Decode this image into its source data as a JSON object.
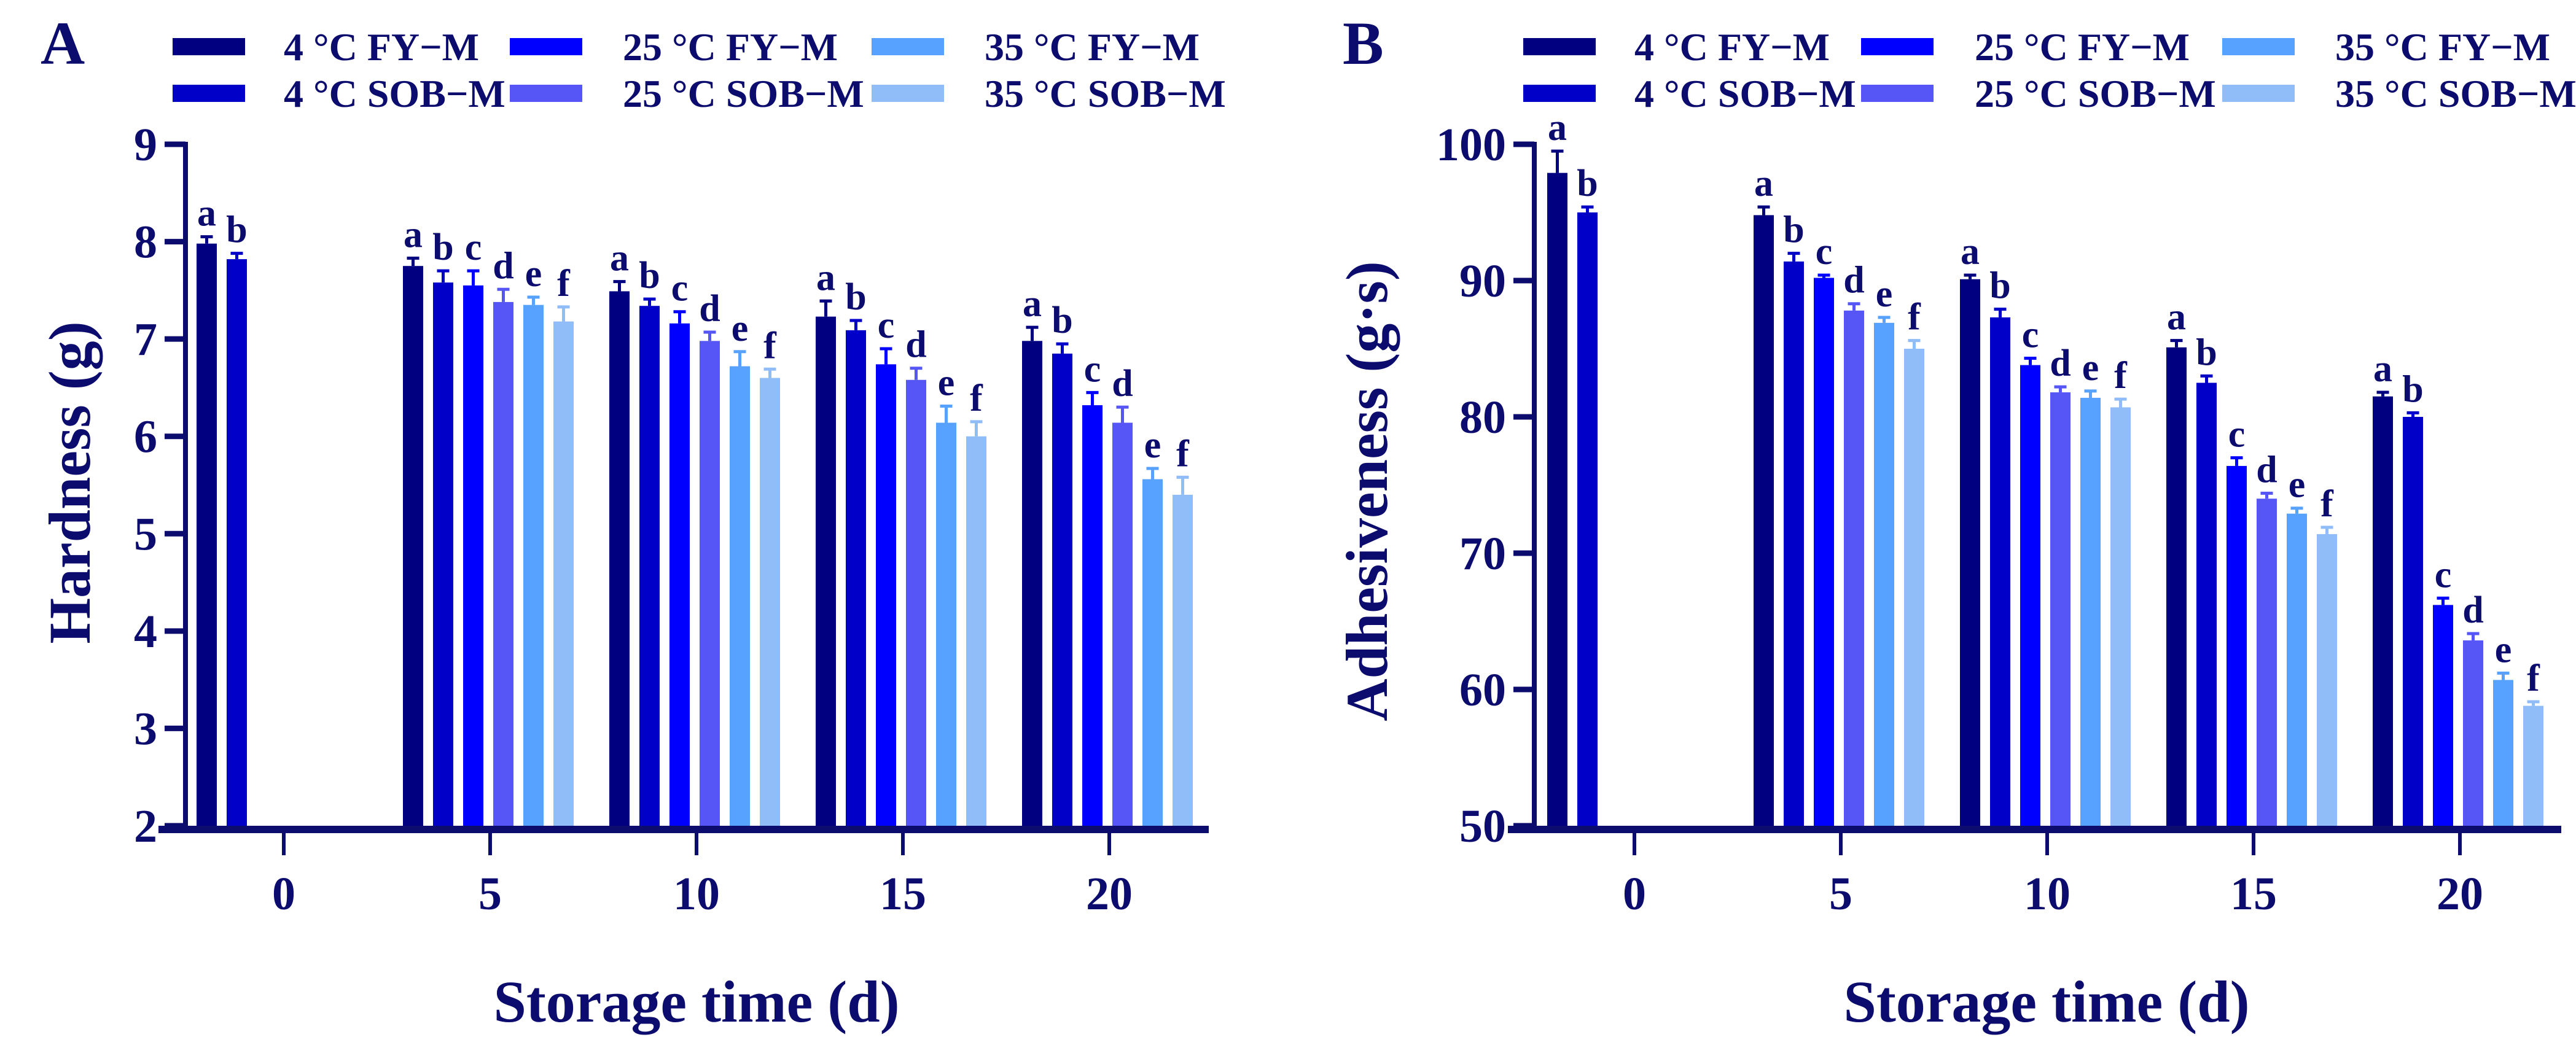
{
  "colors": {
    "axis": "#0c0c6e",
    "series": [
      "#000080",
      "#0000c8",
      "#0000ff",
      "#5656f6",
      "#56a2fe",
      "#90bdf8"
    ]
  },
  "chart_data": [
    {
      "type": "bar",
      "panel_label": "A",
      "xlabel": "Storage time (d)",
      "ylabel": "Hardness (g)",
      "categories": [
        "0",
        "5",
        "10",
        "15",
        "20"
      ],
      "ylim": [
        2,
        9
      ],
      "yticks": [
        "2",
        "3",
        "4",
        "5",
        "6",
        "7",
        "8",
        "9"
      ],
      "legend_position": "top",
      "series": [
        {
          "name": "4 °C FY−M",
          "values": [
            7.98,
            7.75,
            7.49,
            7.23,
            6.98
          ],
          "errors": [
            0.07,
            0.08,
            0.1,
            0.16,
            0.14
          ],
          "letters": [
            "a",
            "a",
            "a",
            "a",
            "a"
          ]
        },
        {
          "name": "4 °C SOB−M",
          "values": [
            7.82,
            7.58,
            7.34,
            7.09,
            6.85
          ],
          "errors": [
            0.06,
            0.12,
            0.07,
            0.1,
            0.1
          ],
          "letters": [
            "b",
            "b",
            "b",
            "b",
            "b"
          ]
        },
        {
          "name": "25 °C FY−M",
          "values": [
            null,
            7.55,
            7.16,
            6.74,
            6.32
          ],
          "errors": [
            null,
            0.15,
            0.12,
            0.16,
            0.13
          ],
          "letters": [
            null,
            "c",
            "c",
            "c",
            "c"
          ]
        },
        {
          "name": "25 °C SOB−M",
          "values": [
            null,
            7.38,
            6.98,
            6.58,
            6.14
          ],
          "errors": [
            null,
            0.13,
            0.09,
            0.12,
            0.16
          ],
          "letters": [
            null,
            "d",
            "d",
            "d",
            "d"
          ]
        },
        {
          "name": "35 °C FY−M",
          "values": [
            null,
            7.35,
            6.72,
            6.14,
            5.56
          ],
          "errors": [
            null,
            0.08,
            0.15,
            0.17,
            0.11
          ],
          "letters": [
            null,
            "e",
            "e",
            "e",
            "e"
          ]
        },
        {
          "name": "35 °C SOB−M",
          "values": [
            null,
            7.18,
            6.6,
            6.0,
            5.4
          ],
          "errors": [
            null,
            0.15,
            0.09,
            0.15,
            0.18
          ],
          "letters": [
            null,
            "f",
            "f",
            "f",
            "f"
          ]
        }
      ]
    },
    {
      "type": "bar",
      "panel_label": "B",
      "xlabel": "Storage time (d)",
      "ylabel": "Adhesiveness (g·s)",
      "categories": [
        "0",
        "5",
        "10",
        "15",
        "20"
      ],
      "ylim": [
        50,
        100
      ],
      "yticks": [
        "50",
        "60",
        "70",
        "80",
        "90",
        "100"
      ],
      "legend_position": "top",
      "series": [
        {
          "name": "4 °C FY−M",
          "values": [
            97.9,
            94.8,
            90.1,
            85.1,
            81.5
          ],
          "errors": [
            1.6,
            0.6,
            0.3,
            0.5,
            0.3
          ],
          "letters": [
            "a",
            "a",
            "a",
            "a",
            "a"
          ]
        },
        {
          "name": "4 °C SOB−M",
          "values": [
            95.0,
            91.4,
            87.3,
            82.5,
            80.0
          ],
          "errors": [
            0.4,
            0.6,
            0.6,
            0.5,
            0.3
          ],
          "letters": [
            "b",
            "b",
            "b",
            "b",
            "b"
          ]
        },
        {
          "name": "25 °C FY−M",
          "values": [
            null,
            90.2,
            83.8,
            76.4,
            66.2
          ],
          "errors": [
            null,
            0.2,
            0.5,
            0.6,
            0.5
          ],
          "letters": [
            null,
            "c",
            "c",
            "c",
            "c"
          ]
        },
        {
          "name": "25 °C SOB−M",
          "values": [
            null,
            87.8,
            81.8,
            74.0,
            63.6
          ],
          "errors": [
            null,
            0.5,
            0.4,
            0.4,
            0.5
          ],
          "letters": [
            null,
            "d",
            "d",
            "d",
            "d"
          ]
        },
        {
          "name": "35 °C FY−M",
          "values": [
            null,
            86.9,
            81.4,
            72.9,
            60.7
          ],
          "errors": [
            null,
            0.4,
            0.5,
            0.4,
            0.5
          ],
          "letters": [
            null,
            "e",
            "e",
            "e",
            "e"
          ]
        },
        {
          "name": "35 °C SOB−M",
          "values": [
            null,
            85.0,
            80.7,
            71.4,
            58.8
          ],
          "errors": [
            null,
            0.6,
            0.6,
            0.5,
            0.3
          ],
          "letters": [
            null,
            "f",
            "f",
            "f",
            "f"
          ]
        }
      ]
    }
  ]
}
